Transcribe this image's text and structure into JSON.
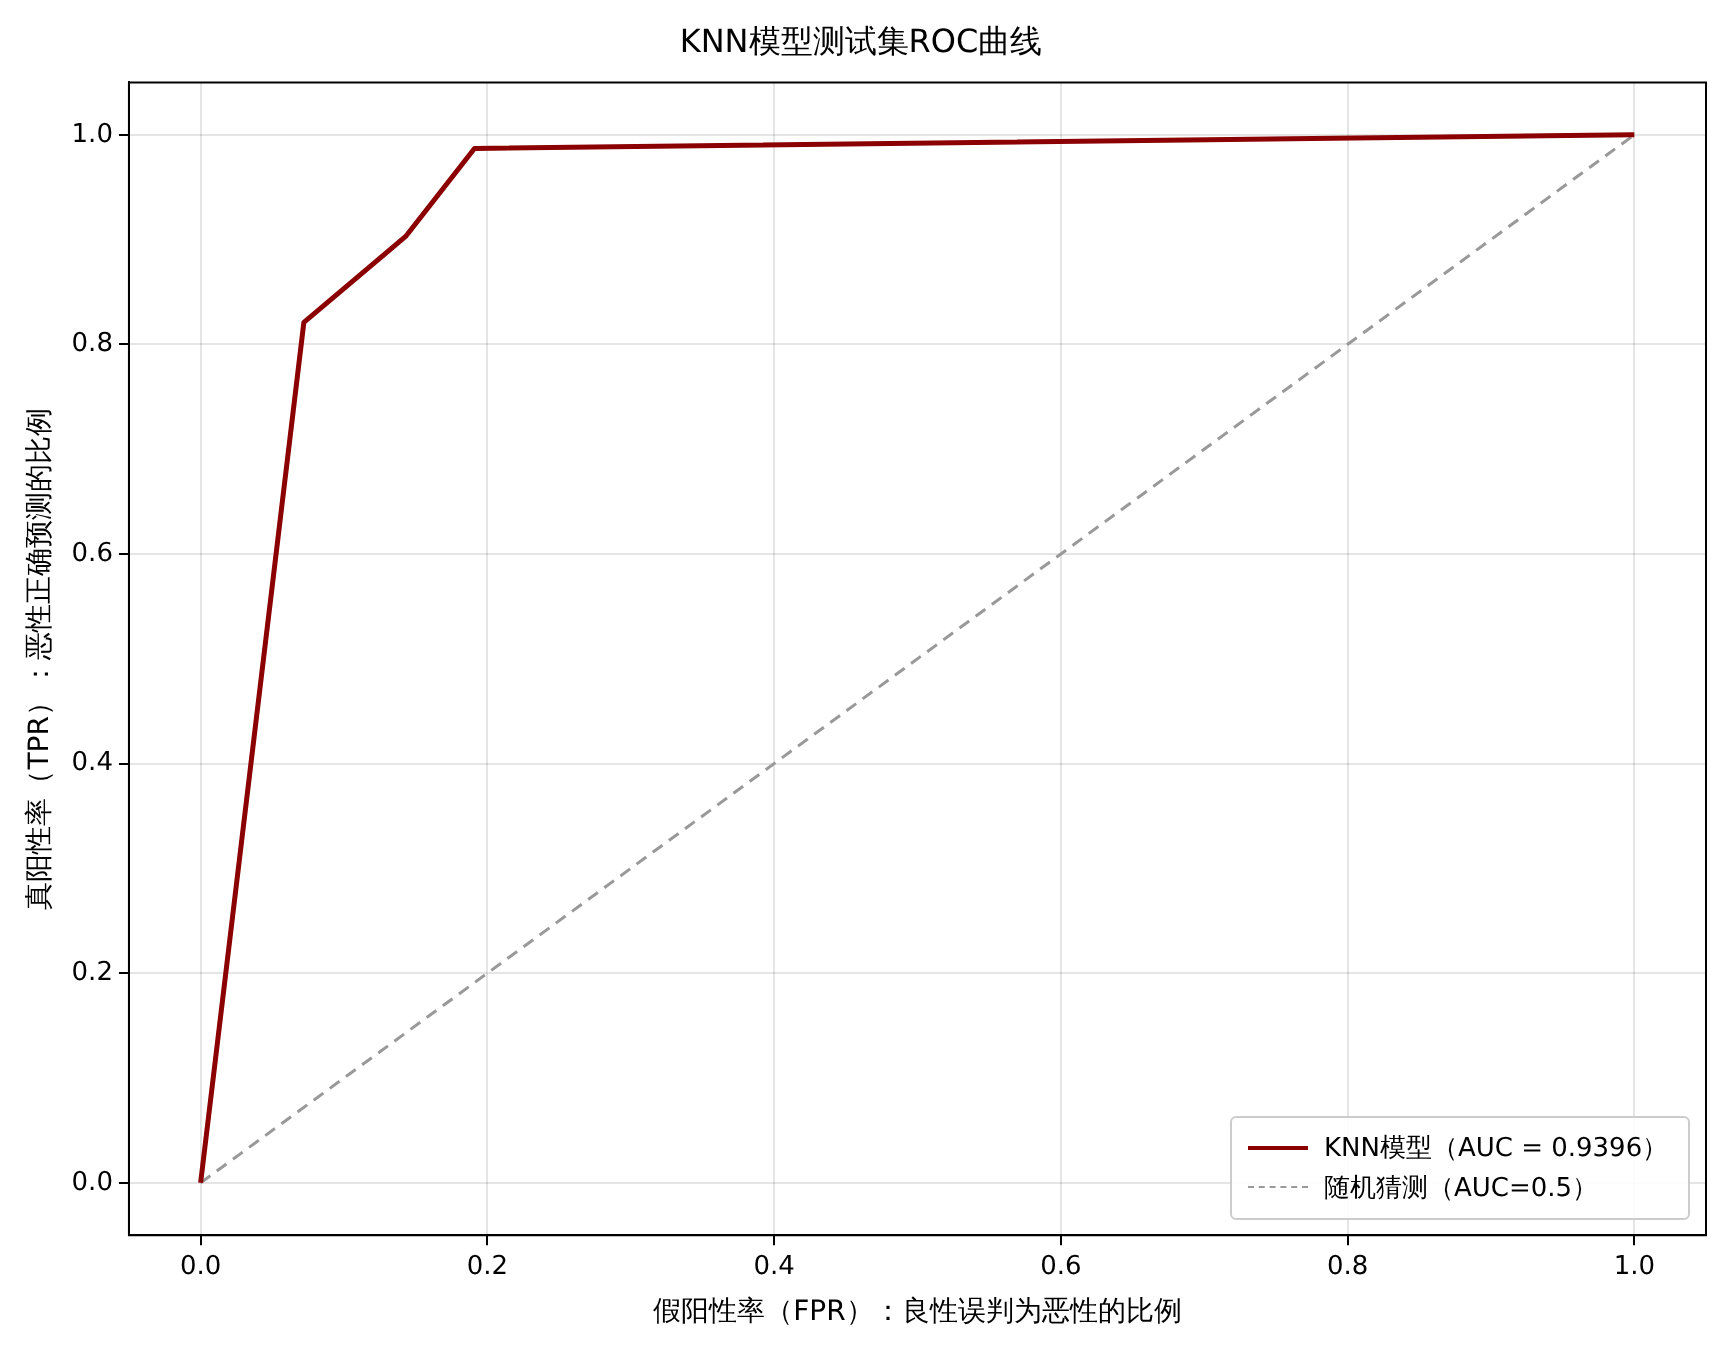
{
  "chart_data": {
    "type": "line",
    "title": "KNN模型测试集ROC曲线",
    "xlabel": "假阳性率（FPR）：良性误判为恶性的比例",
    "ylabel": "真阳性率（TPR）：恶性正确预测的比例",
    "series": [
      {
        "name": "KNN模型（AUC = 0.9396）",
        "color": "#8b0000",
        "x": [
          0,
          0.072,
          0.143,
          0.191,
          1
        ],
        "values": [
          0,
          0.821,
          0.903,
          0.987,
          1
        ],
        "line_style": "solid"
      },
      {
        "name": "随机猜测（AUC=0.5）",
        "color": "#999999",
        "x": [
          0,
          1
        ],
        "values": [
          0,
          1
        ],
        "line_style": "dashed"
      }
    ],
    "xlim": [
      -0.05,
      1.05
    ],
    "ylim": [
      -0.05,
      1.05
    ],
    "xticks": [
      {
        "value": 0,
        "label": "0.0"
      },
      {
        "value": 0.2,
        "label": "0.2"
      },
      {
        "value": 0.4,
        "label": "0.4"
      },
      {
        "value": 0.6,
        "label": "0.6"
      },
      {
        "value": 0.8,
        "label": "0.8"
      },
      {
        "value": 1,
        "label": "1.0"
      }
    ],
    "yticks": [
      {
        "value": 0,
        "label": "0.0"
      },
      {
        "value": 0.2,
        "label": "0.2"
      },
      {
        "value": 0.4,
        "label": "0.4"
      },
      {
        "value": 0.6,
        "label": "0.6"
      },
      {
        "value": 0.8,
        "label": "0.8"
      },
      {
        "value": 1,
        "label": "1.0"
      }
    ],
    "grid": true,
    "legend": "bottom right",
    "marker": "none"
  }
}
